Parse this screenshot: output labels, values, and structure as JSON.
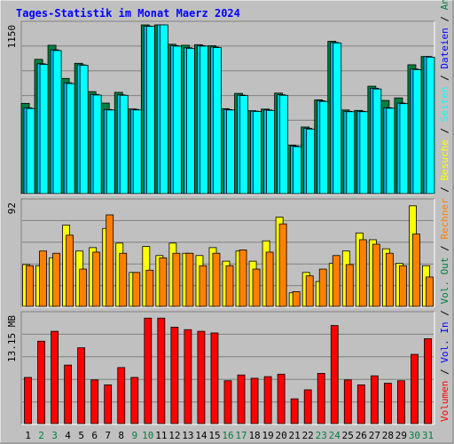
{
  "title": "Tages-Statistik im Monat Maerz 2024",
  "colors": {
    "background": "#c0c0c0",
    "title": "#0000ff",
    "anfragen": "#008040",
    "dateien": "#00c0ff",
    "seiten": "#00ffff",
    "besuche": "#ffff00",
    "rechner": "#ff8000",
    "vol_in": "#0000ff",
    "vol_out": "#008040",
    "volumen": "#ff0000",
    "weekend_day_label": "#008040",
    "weekday_label": "#000000"
  },
  "chart_data": [
    {
      "type": "bar",
      "name": "top-panel",
      "ymax_label": "1150",
      "ylim": [
        0,
        1150
      ],
      "categories": [
        "1",
        "2",
        "3",
        "4",
        "5",
        "6",
        "7",
        "8",
        "9",
        "10",
        "11",
        "12",
        "13",
        "14",
        "15",
        "16",
        "17",
        "18",
        "19",
        "20",
        "21",
        "22",
        "23",
        "24",
        "25",
        "26",
        "27",
        "28",
        "29",
        "30",
        "31"
      ],
      "series": [
        {
          "name": "Anfragen",
          "values": [
            615,
            915,
            1011,
            785,
            888,
            695,
            617,
            690,
            577,
            1155,
            1155,
            1018,
            1011,
            1015,
            1008,
            579,
            683,
            565,
            576,
            685,
            330,
            454,
            639,
            1038,
            570,
            567,
            732,
            635,
            652,
            878,
            934
          ]
        },
        {
          "name": "Dateien",
          "values": [
            585,
            885,
            980,
            755,
            878,
            676,
            573,
            673,
            574,
            1142,
            1155,
            1009,
            994,
            1008,
            999,
            573,
            671,
            562,
            570,
            674,
            324,
            445,
            632,
            1030,
            561,
            561,
            718,
            585,
            617,
            849,
            934
          ]
        },
        {
          "name": "Seiten",
          "values": [
            580,
            880,
            975,
            750,
            875,
            672,
            570,
            670,
            570,
            1140,
            1150,
            1005,
            990,
            1005,
            995,
            570,
            668,
            560,
            567,
            670,
            320,
            440,
            628,
            1027,
            558,
            558,
            713,
            582,
            613,
            845,
            930
          ]
        }
      ],
      "legend": [
        "Anfragen",
        "Dateien",
        "Seiten"
      ]
    },
    {
      "type": "bar",
      "name": "middle-panel",
      "ymax_label": "92",
      "ylim": [
        0,
        92
      ],
      "categories": [
        "1",
        "2",
        "3",
        "4",
        "5",
        "6",
        "7",
        "8",
        "9",
        "10",
        "11",
        "12",
        "13",
        "14",
        "15",
        "16",
        "17",
        "18",
        "19",
        "20",
        "21",
        "22",
        "23",
        "24",
        "25",
        "26",
        "27",
        "28",
        "29",
        "30",
        "31"
      ],
      "series": [
        {
          "name": "Besuche",
          "values": [
            37,
            36,
            43,
            72,
            49,
            52,
            69,
            56,
            30,
            53,
            45,
            56,
            47,
            45,
            52,
            40,
            49,
            40,
            58,
            79,
            12,
            30,
            22,
            38,
            49,
            65,
            59,
            51,
            38,
            89,
            36
          ]
        },
        {
          "name": "Rechner",
          "values": [
            36,
            49,
            47,
            63,
            33,
            48,
            81,
            47,
            30,
            32,
            43,
            47,
            47,
            36,
            47,
            36,
            50,
            33,
            48,
            73,
            13,
            27,
            33,
            45,
            37,
            59,
            55,
            47,
            36,
            64,
            26
          ]
        }
      ],
      "legend": [
        "Besuche",
        "Rechner"
      ]
    },
    {
      "type": "bar",
      "name": "bottom-panel",
      "ymax_label": "13.15 MB",
      "ylim": [
        0,
        13.15
      ],
      "categories": [
        "1",
        "2",
        "3",
        "4",
        "5",
        "6",
        "7",
        "8",
        "9",
        "10",
        "11",
        "12",
        "13",
        "14",
        "15",
        "16",
        "17",
        "18",
        "19",
        "20",
        "21",
        "22",
        "23",
        "24",
        "25",
        "26",
        "27",
        "28",
        "29",
        "30",
        "31"
      ],
      "series": [
        {
          "name": "Volumen",
          "values": [
            5.6,
            10.0,
            11.2,
            7.1,
            9.2,
            5.3,
            4.7,
            6.8,
            5.6,
            12.8,
            12.8,
            11.7,
            11.4,
            11.2,
            11.0,
            5.2,
            5.9,
            5.5,
            5.7,
            6.0,
            3.0,
            4.1,
            6.1,
            11.9,
            5.3,
            4.7,
            5.8,
            4.9,
            5.2,
            8.4,
            10.3
          ]
        }
      ],
      "legend": [
        "Vol. Out",
        "Vol. In",
        "Volumen"
      ]
    }
  ],
  "x_labels": [
    {
      "text": "1",
      "weekend": false
    },
    {
      "text": "2",
      "weekend": true
    },
    {
      "text": "3",
      "weekend": true
    },
    {
      "text": "4",
      "weekend": false
    },
    {
      "text": "5",
      "weekend": false
    },
    {
      "text": "6",
      "weekend": false
    },
    {
      "text": "7",
      "weekend": false
    },
    {
      "text": "8",
      "weekend": false
    },
    {
      "text": "9",
      "weekend": true
    },
    {
      "text": "10",
      "weekend": true
    },
    {
      "text": "11",
      "weekend": false
    },
    {
      "text": "12",
      "weekend": false
    },
    {
      "text": "13",
      "weekend": false
    },
    {
      "text": "14",
      "weekend": false
    },
    {
      "text": "15",
      "weekend": false
    },
    {
      "text": "16",
      "weekend": true
    },
    {
      "text": "17",
      "weekend": true
    },
    {
      "text": "18",
      "weekend": false
    },
    {
      "text": "19",
      "weekend": false
    },
    {
      "text": "20",
      "weekend": false
    },
    {
      "text": "21",
      "weekend": false
    },
    {
      "text": "22",
      "weekend": false
    },
    {
      "text": "23",
      "weekend": true
    },
    {
      "text": "24",
      "weekend": true
    },
    {
      "text": "25",
      "weekend": false
    },
    {
      "text": "26",
      "weekend": false
    },
    {
      "text": "27",
      "weekend": false
    },
    {
      "text": "28",
      "weekend": false
    },
    {
      "text": "29",
      "weekend": false
    },
    {
      "text": "30",
      "weekend": true
    },
    {
      "text": "31",
      "weekend": true
    }
  ],
  "right_legend": [
    {
      "text": "Volumen",
      "color": "#ff0000"
    },
    {
      "text": " / ",
      "color": "#000000"
    },
    {
      "text": "Vol. In",
      "color": "#0000ff"
    },
    {
      "text": " / ",
      "color": "#000000"
    },
    {
      "text": "Vol. Out",
      "color": "#008040"
    },
    {
      "text": " / ",
      "color": "#000000"
    },
    {
      "text": "Rechner",
      "color": "#ff8000"
    },
    {
      "text": " / ",
      "color": "#000000"
    },
    {
      "text": "Besuche",
      "color": "#ffff00"
    },
    {
      "text": " / ",
      "color": "#000000"
    },
    {
      "text": "Seiten",
      "color": "#00ffff"
    },
    {
      "text": " / ",
      "color": "#000000"
    },
    {
      "text": "Dateien",
      "color": "#0000ff"
    },
    {
      "text": " / ",
      "color": "#000000"
    },
    {
      "text": "Anfragen",
      "color": "#008040"
    }
  ]
}
